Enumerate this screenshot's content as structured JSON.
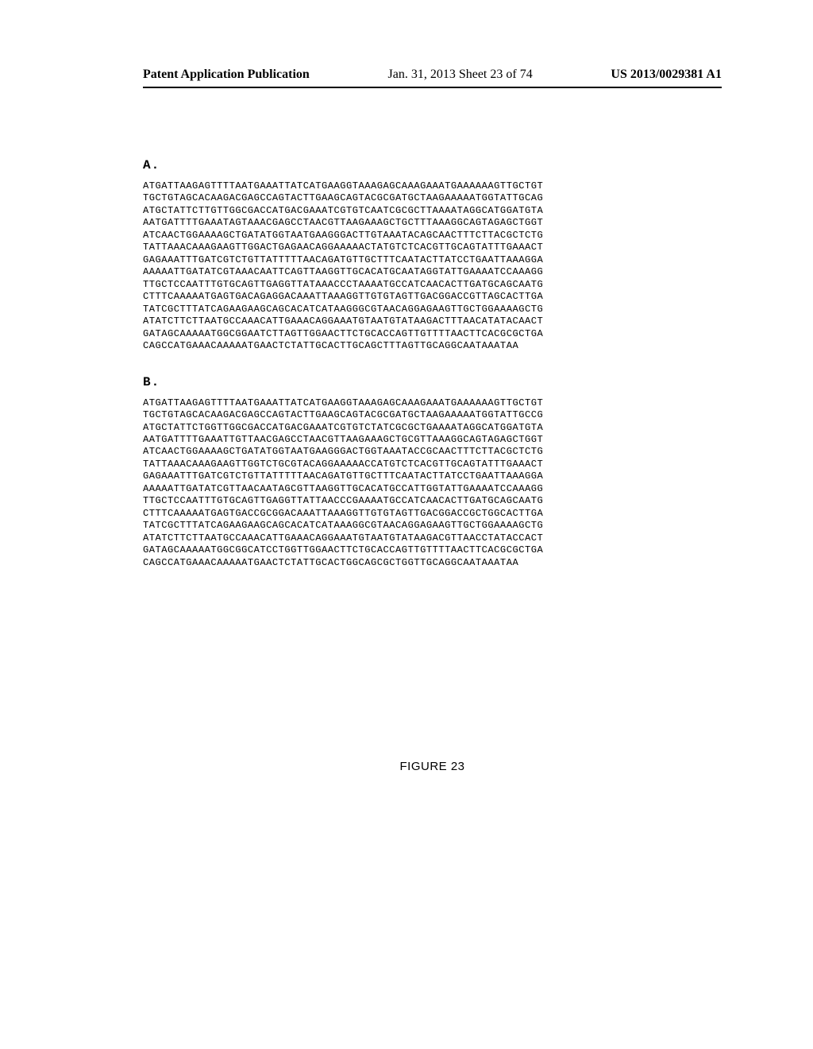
{
  "header": {
    "left": "Patent Application Publication",
    "mid": "Jan. 31, 2013  Sheet 23 of 74",
    "right": "US 2013/0029381 A1"
  },
  "sections": {
    "a": {
      "label": "A.",
      "lines": [
        "ATGATTAAGAGTTTTAATGAAATTATCATGAAGGTAAAGAGCAAAGAAATGAAAAAAGTTGCTGT",
        "TGCTGTAGCACAAGACGAGCCAGTACTTGAAGCAGTACGCGATGCTAAGAAAAATGGTATTGCAG",
        "ATGCTATTCTTGTTGGCGACCATGACGAAATCGTGTCAATCGCGCTTAAAATAGGCATGGATGTA",
        "AATGATTTTGAAATAGTAAACGAGCCTAACGTTAAGAAAGCTGCTTTAAAGGCAGTAGAGCTGGT",
        "ATCAACTGGAAAAGCTGATATGGTAATGAAGGGACTTGTAAATACAGCAACTTTCTTACGCTCTG",
        "TATTAAACAAAGAAGTTGGACTGAGAACAGGAAAAACTATGTCTCACGTTGCAGTATTTGAAACT",
        "GAGAAATTTGATCGTCTGTTATTTTTAACAGATGTTGCTTTCAATACTTATCCTGAATTAAAGGA",
        "AAAAATTGATATCGTAAACAATTCAGTTAAGGTTGCACATGCAATAGGTATTGAAAATCCAAAGG",
        "TTGCTCCAATTTGTGCAGTTGAGGTTATAAACCCTAAAATGCCATCAACACTTGATGCAGCAATG",
        "CTTTCAAAAATGAGTGACAGAGGACAAATTAAAGGTTGTGTAGTTGACGGACCGTTAGCACTTGA",
        "TATCGCTTTATCAGAAGAAGCAGCACATCATAAGGGCGTAACAGGAGAAGTTGCTGGAAAAGCTG",
        "ATATCTTCTTAATGCCAAACATTGAAACAGGAAATGTAATGTATAAGACTTTAACATATACAACT",
        "GATAGCAAAAATGGCGGAATCTTAGTTGGAACTTCTGCACCAGTTGTTTTAACTTCACGCGCTGA",
        "CAGCCATGAAACAAAAATGAACTCTATTGCACTTGCAGCTTTAGTTGCAGGCAATAAATAA"
      ]
    },
    "b": {
      "label": "B.",
      "lines": [
        "ATGATTAAGAGTTTTAATGAAATTATCATGAAGGTAAAGAGCAAAGAAATGAAAAAAGTTGCTGT",
        "TGCTGTAGCACAAGACGAGCCAGTACTTGAAGCAGTACGCGATGCTAAGAAAAATGGTATTGCCG",
        "ATGCTATTCTGGTTGGCGACCATGACGAAATCGTGTCTATCGCGCTGAAAATAGGCATGGATGTA",
        "AATGATTTTGAAATTGTTAACGAGCCTAACGTTAAGAAAGCTGCGTTAAAGGCAGTAGAGCTGGT",
        "ATCAACTGGAAAAGCTGATATGGTAATGAAGGGACTGGTAAATACCGCAACTTTCTTACGCTCTG",
        "TATTAAACAAAGAAGTTGGTCTGCGTACAGGAAAAACCATGTCTCACGTTGCAGTATTTGAAACT",
        "GAGAAATTTGATCGTCTGTTATTTTTAACAGATGTTGCTTTCAATACTTATCCTGAATTAAAGGA",
        "AAAAATTGATATCGTTAACAATAGCGTTAAGGTTGCACATGCCATTGGTATTGAAAATCCAAAGG",
        "TTGCTCCAATTTGTGCAGTTGAGGTTATTAACCCGAAAATGCCATCAACACTTGATGCAGCAATG",
        "CTTTCAAAAATGAGTGACCGCGGACAAATTAAAGGTTGTGTAGTTGACGGACCGCTGGCACTTGA",
        "TATCGCTTTATCAGAAGAAGCAGCACATCATAAAGGCGTAACAGGAGAAGTTGCTGGAAAAGCTG",
        "ATATCTTCTTAATGCCAAACATTGAAACAGGAAATGTAATGTATAAGACGTTAACCTATACCACT",
        "GATAGCAAAAATGGCGGCATCCTGGTTGGAACTTCTGCACCAGTTGTTTTAACTTCACGCGCTGA",
        "CAGCCATGAAACAAAAATGAACTCTATTGCACTGGCAGCGCTGGTTGCAGGCAATAAATAA"
      ]
    }
  },
  "figure_label": "FIGURE 23"
}
